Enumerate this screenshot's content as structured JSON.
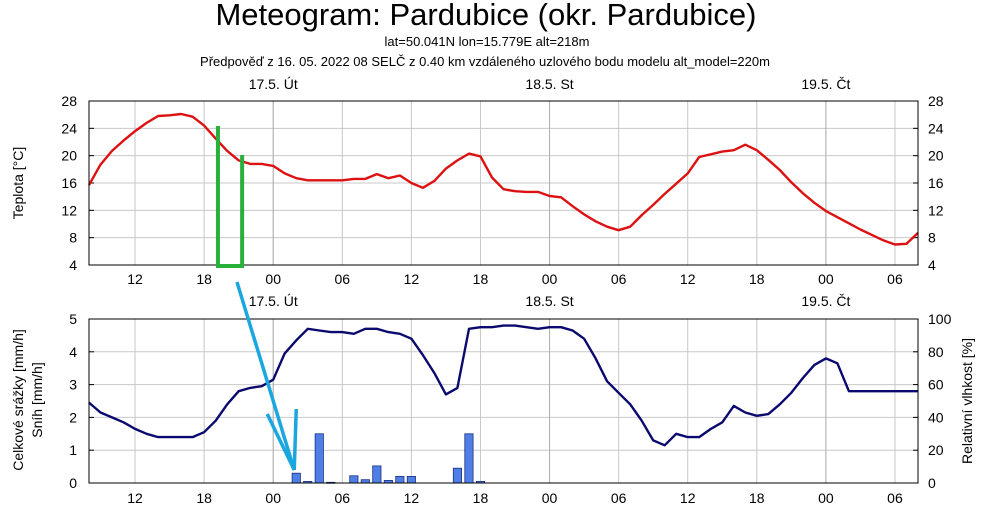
{
  "header": {
    "title": "Meteogram: Pardubice (okr. Pardubice)",
    "coords": "lat=50.041N lon=15.779E alt=218m",
    "forecast": "Předpověď z 16. 05. 2022 08 SELČ z 0.40 km vzdáleného uzlového bodu modelu alt_model=220m"
  },
  "colors": {
    "temperature": "#dd1111",
    "humidity": "#0a0a6e",
    "precip_fill": "#4f7fe6",
    "precip_stroke": "#1a2f80",
    "grid": "#c8c8c8",
    "annotation_green": "#27b03a",
    "annotation_blue": "#1aa7e0"
  },
  "chart_data": [
    {
      "type": "line",
      "name": "temperature",
      "xlabel_ticks": [
        "12",
        "18",
        "00",
        "06",
        "12",
        "18",
        "00",
        "06",
        "12",
        "18",
        "00",
        "06"
      ],
      "x_hours_range": [
        8,
        80
      ],
      "day_labels": [
        {
          "hour": 24,
          "label": "17.5. Út"
        },
        {
          "hour": 48,
          "label": "18.5. St"
        },
        {
          "hour": 72,
          "label": "19.5. Čt"
        }
      ],
      "ylabel": "Teplota [°C]",
      "ylim": [
        4,
        28
      ],
      "yticks": [
        "4",
        "8",
        "12",
        "16",
        "20",
        "24",
        "28"
      ],
      "series": [
        {
          "name": "Teplota",
          "x": [
            8,
            9,
            10,
            11,
            12,
            13,
            14,
            15,
            16,
            17,
            18,
            19,
            20,
            21,
            22,
            23,
            24,
            25,
            26,
            27,
            28,
            29,
            30,
            31,
            32,
            33,
            34,
            35,
            36,
            37,
            38,
            39,
            40,
            41,
            42,
            43,
            44,
            45,
            46,
            47,
            48,
            49,
            50,
            51,
            52,
            53,
            54,
            55,
            56,
            57,
            58,
            59,
            60,
            61,
            62,
            63,
            64,
            65,
            66,
            67,
            68,
            69,
            70,
            71,
            72,
            73,
            74,
            75,
            76,
            77,
            78,
            79,
            80
          ],
          "y": [
            15.7,
            18.7,
            20.7,
            22.2,
            23.6,
            24.8,
            25.8,
            25.9,
            26.1,
            25.7,
            24.4,
            22.5,
            20.7,
            19.3,
            18.8,
            18.8,
            18.5,
            17.4,
            16.7,
            16.4,
            16.4,
            16.4,
            16.4,
            16.6,
            16.6,
            17.3,
            16.7,
            17.1,
            16.0,
            15.3,
            16.3,
            18.1,
            19.3,
            20.3,
            19.9,
            16.8,
            15.1,
            14.8,
            14.7,
            14.7,
            14.1,
            13.9,
            12.6,
            11.4,
            10.4,
            9.6,
            9.1,
            9.6,
            11.3,
            12.8,
            14.4,
            15.9,
            17.4,
            19.8,
            20.2,
            20.6,
            20.8,
            21.6,
            20.8,
            19.4,
            17.9,
            16.1,
            14.5,
            13.1,
            11.9,
            11.0,
            10.1,
            9.2,
            8.4,
            7.6,
            7.0,
            7.1,
            8.7
          ]
        }
      ]
    },
    {
      "type": "bar+line",
      "name": "precipitation-humidity",
      "xlabel_ticks": [
        "12",
        "18",
        "00",
        "06",
        "12",
        "18",
        "00",
        "06",
        "12",
        "18",
        "00",
        "06"
      ],
      "x_hours_range": [
        8,
        80
      ],
      "day_labels": [
        {
          "hour": 24,
          "label": "17.5. Út"
        },
        {
          "hour": 48,
          "label": "18.5. St"
        },
        {
          "hour": 72,
          "label": "19.5. Čt"
        }
      ],
      "ylabel_left": "Celkové srážky [mm/h]",
      "ylabel_left2": "Sníh [mm/h]",
      "ylim_left": [
        0,
        5
      ],
      "yticks_left": [
        "0",
        "1",
        "2",
        "3",
        "4",
        "5"
      ],
      "ylabel_right": "Relativní vlhkost [%]",
      "ylim_right": [
        0,
        100
      ],
      "yticks_right": [
        "0",
        "20",
        "40",
        "60",
        "80",
        "100"
      ],
      "precip_bars": {
        "x": [
          26,
          27,
          28,
          29,
          31,
          32,
          33,
          34,
          35,
          36,
          40,
          41,
          42
        ],
        "values": [
          0.3,
          0.05,
          1.5,
          0.02,
          0.22,
          0.1,
          0.52,
          0.08,
          0.2,
          0.2,
          0.45,
          1.5,
          0.05
        ]
      },
      "humidity": {
        "x": [
          8,
          9,
          10,
          11,
          12,
          13,
          14,
          15,
          16,
          17,
          18,
          19,
          20,
          21,
          22,
          23,
          24,
          25,
          26,
          27,
          28,
          29,
          30,
          31,
          32,
          33,
          34,
          35,
          36,
          37,
          38,
          39,
          40,
          41,
          42,
          43,
          44,
          45,
          46,
          47,
          48,
          49,
          50,
          51,
          52,
          53,
          54,
          55,
          56,
          57,
          58,
          59,
          60,
          61,
          62,
          63,
          64,
          65,
          66,
          67,
          68,
          69,
          70,
          71,
          72,
          73,
          74,
          75,
          76,
          77,
          78,
          79,
          80
        ],
        "y": [
          49,
          43,
          40,
          37,
          33,
          30,
          28,
          28,
          28,
          28,
          31,
          38,
          48,
          56,
          58,
          59,
          63,
          79,
          87,
          94,
          93,
          92,
          92,
          91,
          94,
          94,
          92,
          91,
          88,
          78,
          67,
          54,
          58,
          94,
          95,
          95,
          96,
          96,
          95,
          94,
          95,
          95,
          93,
          88,
          76,
          62,
          55,
          48,
          38,
          26,
          23,
          30,
          28,
          28,
          33,
          37,
          47,
          43,
          41,
          42,
          48,
          55,
          64,
          72,
          76,
          73,
          56,
          56,
          56,
          56,
          56,
          56,
          56
        ]
      }
    }
  ],
  "annotations": {
    "green_box": {
      "x_hours": [
        19.2,
        21.3
      ],
      "note": "green rectangle"
    },
    "blue_arrows": "blue arrows pointing to precipitation bar"
  }
}
